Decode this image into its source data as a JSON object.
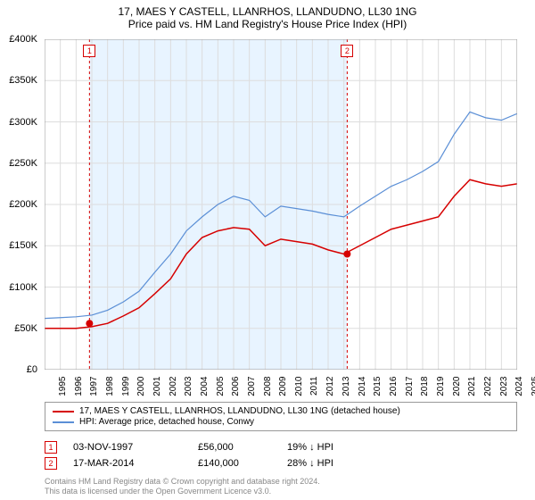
{
  "title_line1": "17, MAES Y CASTELL, LLANRHOS, LLANDUDNO, LL30 1NG",
  "title_line2": "Price paid vs. HM Land Registry's House Price Index (HPI)",
  "chart": {
    "type": "line",
    "background_color": "#ffffff",
    "grid_color": "#dddddd",
    "shade_color": "#e8f4ff",
    "x_years": [
      1995,
      1996,
      1997,
      1998,
      1999,
      2000,
      2001,
      2002,
      2003,
      2004,
      2005,
      2006,
      2007,
      2008,
      2009,
      2010,
      2011,
      2012,
      2013,
      2014,
      2015,
      2016,
      2017,
      2018,
      2019,
      2020,
      2021,
      2022,
      2023,
      2024,
      2025
    ],
    "ylim": [
      0,
      400000
    ],
    "ytick_step": 50000,
    "y_tick_labels": [
      "£0",
      "£50K",
      "£100K",
      "£150K",
      "£200K",
      "£250K",
      "£300K",
      "£350K",
      "£400K"
    ],
    "x_label_fontsize": 10,
    "y_label_fontsize": 11,
    "series": [
      {
        "name": "property",
        "label": "17, MAES Y CASTELL, LLANRHOS, LLANDUDNO, LL30 1NG (detached house)",
        "color": "#d60000",
        "line_width": 1.5,
        "values": [
          50000,
          50000,
          50000,
          52000,
          56000,
          65000,
          75000,
          92000,
          110000,
          140000,
          160000,
          168000,
          172000,
          170000,
          150000,
          158000,
          155000,
          152000,
          145000,
          140000,
          150000,
          160000,
          170000,
          175000,
          180000,
          185000,
          210000,
          230000,
          225000,
          222000,
          225000
        ]
      },
      {
        "name": "hpi",
        "label": "HPI: Average price, detached house, Conwy",
        "color": "#5b8fd6",
        "line_width": 1.2,
        "values": [
          62000,
          63000,
          64000,
          66000,
          72000,
          82000,
          95000,
          118000,
          140000,
          168000,
          185000,
          200000,
          210000,
          205000,
          185000,
          198000,
          195000,
          192000,
          188000,
          185000,
          198000,
          210000,
          222000,
          230000,
          240000,
          252000,
          285000,
          312000,
          305000,
          302000,
          310000
        ]
      }
    ],
    "markers": [
      {
        "n": "1",
        "year": 1997.85,
        "value": 56000
      },
      {
        "n": "2",
        "year": 2014.21,
        "value": 140000
      }
    ],
    "shade_range": [
      1997.85,
      2014.21
    ]
  },
  "legend": {
    "rows": [
      {
        "color": "#d60000",
        "label": "17, MAES Y CASTELL, LLANRHOS, LLANDUDNO, LL30 1NG (detached house)"
      },
      {
        "color": "#5b8fd6",
        "label": "HPI: Average price, detached house, Conwy"
      }
    ]
  },
  "sales": [
    {
      "n": "1",
      "date": "03-NOV-1997",
      "price": "£56,000",
      "diff": "19% ↓ HPI"
    },
    {
      "n": "2",
      "date": "17-MAR-2014",
      "price": "£140,000",
      "diff": "28% ↓ HPI"
    }
  ],
  "footer_line1": "Contains HM Land Registry data © Crown copyright and database right 2024.",
  "footer_line2": "This data is licensed under the Open Government Licence v3.0."
}
